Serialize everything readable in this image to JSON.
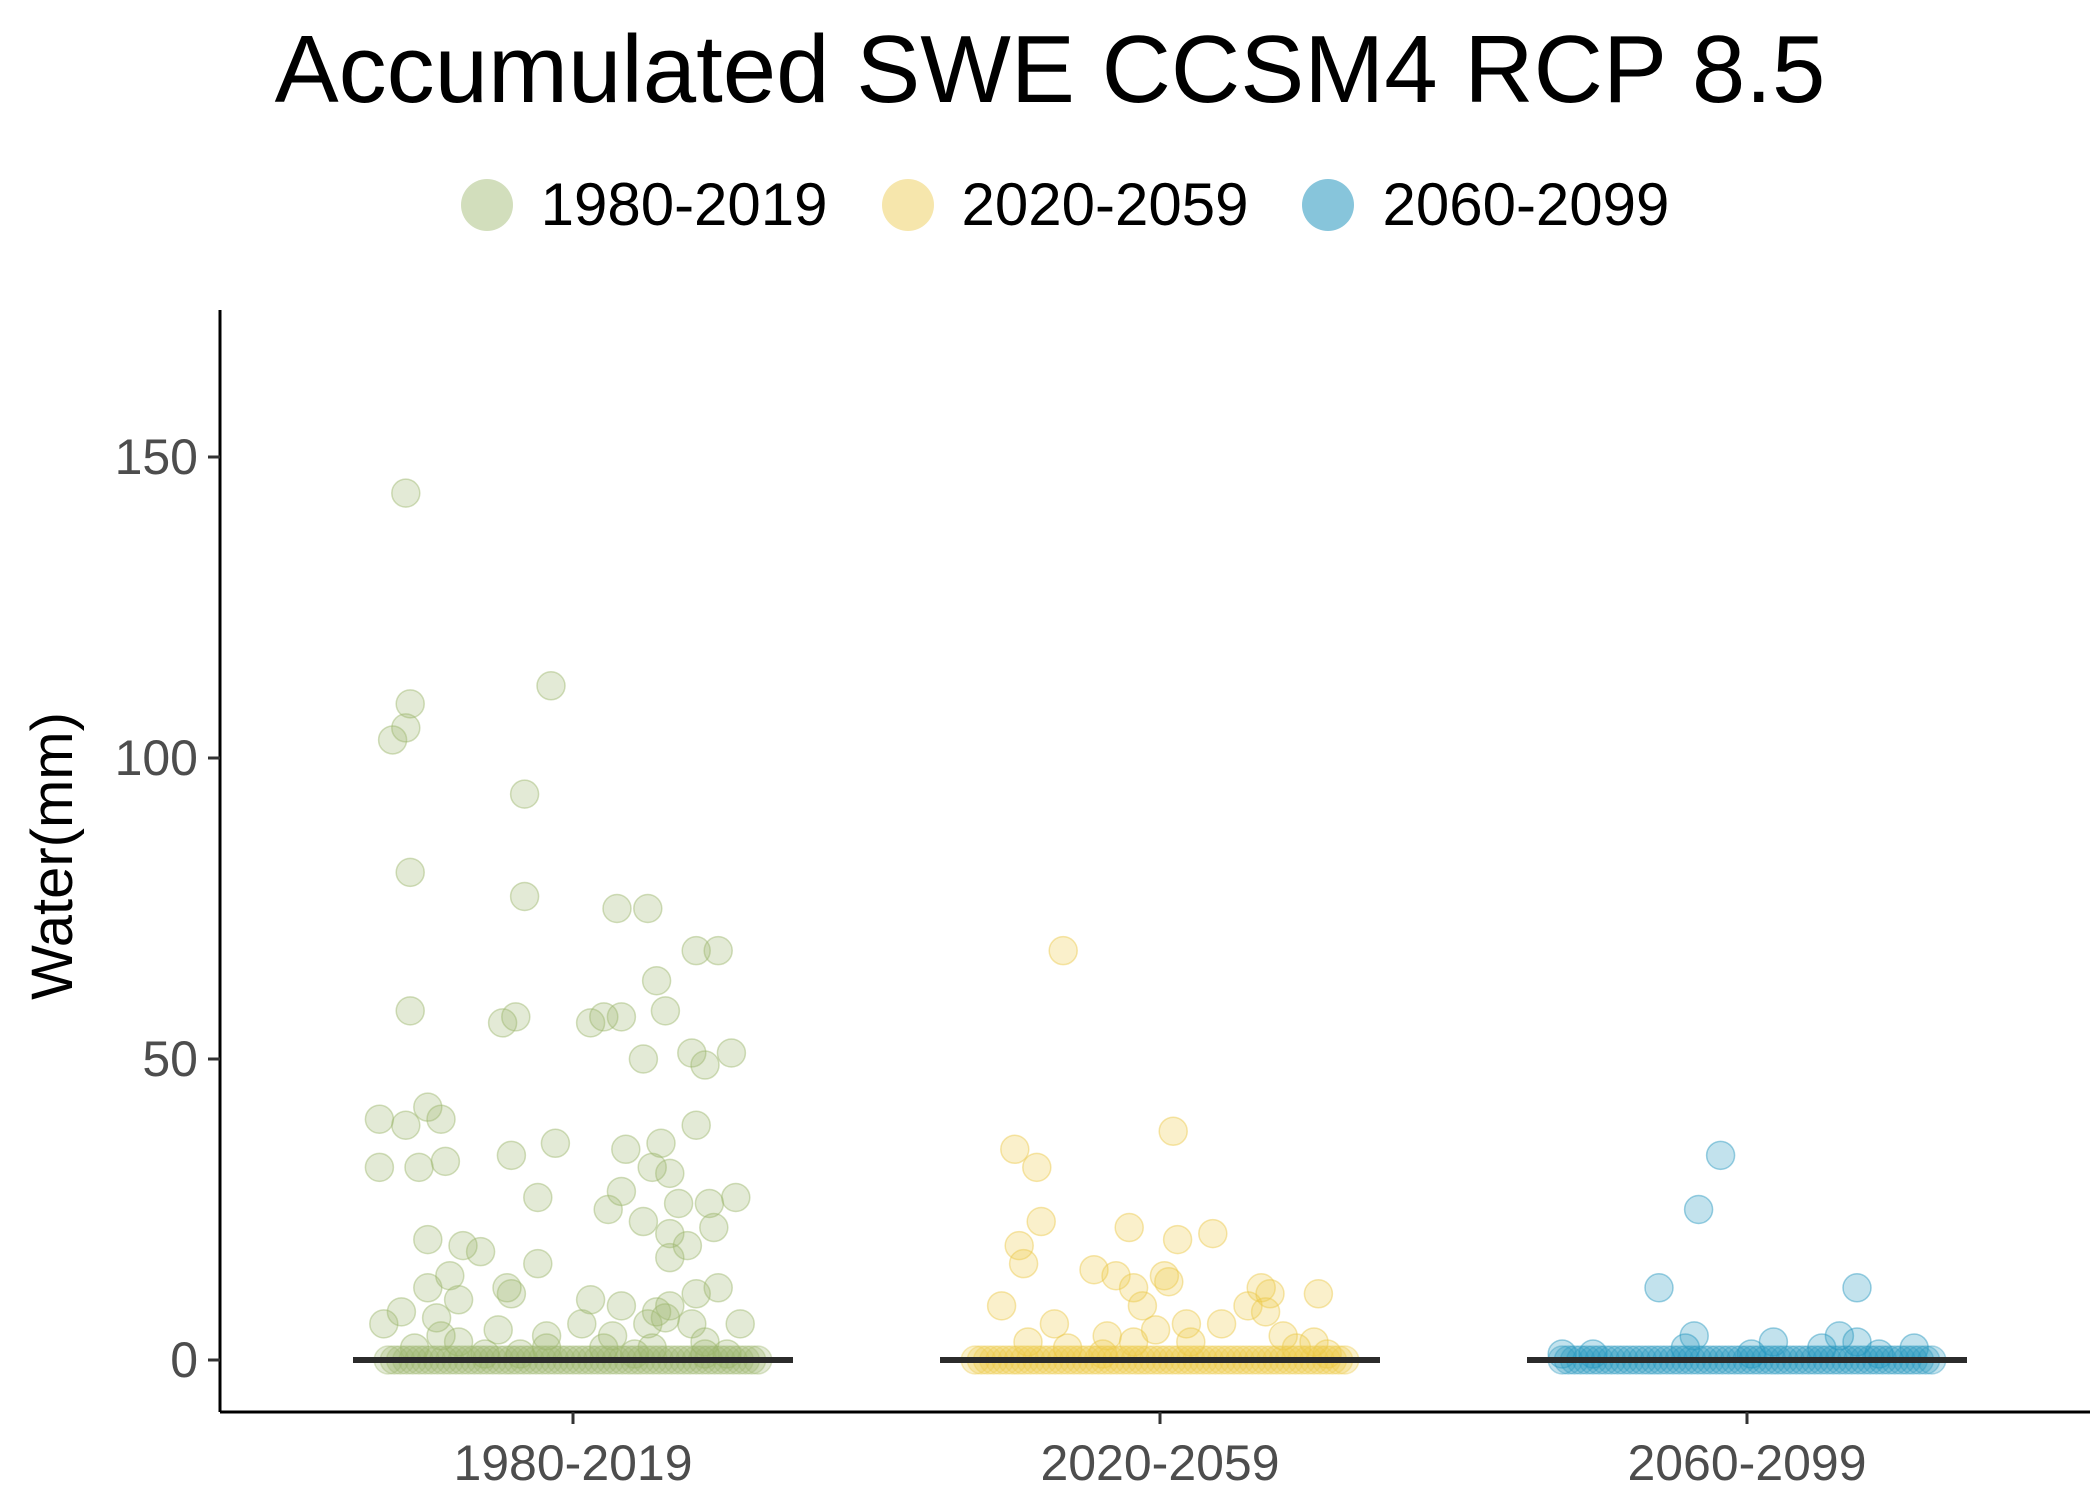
{
  "chart_data": {
    "type": "scatter",
    "title": "Accumulated SWE CCSM4 RCP 8.5",
    "xlabel": "",
    "ylabel": "Water(mm)",
    "ylim": [
      -8,
      174
    ],
    "yticks": [
      0,
      50,
      100,
      150
    ],
    "categories": [
      "1980-2019",
      "2020-2059",
      "2060-2099"
    ],
    "legend_position": "top",
    "median_line_color": "#2b2b2b",
    "series": [
      {
        "name": "1980-2019",
        "color": "#9bb56a",
        "median": 0,
        "points": [
          [
            -0.38,
            144
          ],
          [
            -0.37,
            109
          ],
          [
            -0.05,
            112
          ],
          [
            -0.38,
            105
          ],
          [
            -0.41,
            103
          ],
          [
            -0.11,
            94
          ],
          [
            -0.37,
            81
          ],
          [
            -0.11,
            77
          ],
          [
            0.1,
            75
          ],
          [
            0.17,
            75
          ],
          [
            0.28,
            68
          ],
          [
            0.33,
            68
          ],
          [
            0.19,
            63
          ],
          [
            -0.37,
            58
          ],
          [
            0.07,
            57
          ],
          [
            0.11,
            57
          ],
          [
            0.21,
            58
          ],
          [
            -0.16,
            56
          ],
          [
            -0.13,
            57
          ],
          [
            0.04,
            56
          ],
          [
            0.27,
            51
          ],
          [
            0.3,
            49
          ],
          [
            0.36,
            51
          ],
          [
            0.16,
            50
          ],
          [
            -0.33,
            42
          ],
          [
            -0.3,
            40
          ],
          [
            -0.44,
            40
          ],
          [
            -0.38,
            39
          ],
          [
            0.12,
            35
          ],
          [
            0.2,
            36
          ],
          [
            0.28,
            39
          ],
          [
            -0.04,
            36
          ],
          [
            -0.29,
            33
          ],
          [
            -0.14,
            34
          ],
          [
            -0.35,
            32
          ],
          [
            -0.44,
            32
          ],
          [
            0.18,
            32
          ],
          [
            0.22,
            31
          ],
          [
            -0.08,
            27
          ],
          [
            0.11,
            28
          ],
          [
            0.08,
            25
          ],
          [
            0.31,
            26
          ],
          [
            0.24,
            26
          ],
          [
            0.37,
            27
          ],
          [
            0.16,
            23
          ],
          [
            0.22,
            21
          ],
          [
            0.32,
            22
          ],
          [
            -0.33,
            20
          ],
          [
            -0.25,
            19
          ],
          [
            -0.21,
            18
          ],
          [
            0.26,
            19
          ],
          [
            0.22,
            17
          ],
          [
            -0.08,
            16
          ],
          [
            -0.28,
            14
          ],
          [
            -0.33,
            12
          ],
          [
            -0.15,
            12
          ],
          [
            -0.14,
            11
          ],
          [
            0.33,
            12
          ],
          [
            0.28,
            11
          ],
          [
            0.04,
            10
          ],
          [
            -0.26,
            10
          ],
          [
            0.11,
            9
          ],
          [
            0.22,
            9
          ],
          [
            0.19,
            8
          ],
          [
            -0.39,
            8
          ],
          [
            -0.31,
            7
          ],
          [
            0.21,
            7
          ],
          [
            0.27,
            6
          ],
          [
            -0.43,
            6
          ],
          [
            -0.17,
            5
          ],
          [
            0.02,
            6
          ],
          [
            0.17,
            6
          ],
          [
            0.38,
            6
          ],
          [
            -0.3,
            4
          ],
          [
            0.09,
            4
          ],
          [
            -0.06,
            4
          ],
          [
            -0.26,
            3
          ],
          [
            0.3,
            3
          ],
          [
            -0.36,
            2
          ],
          [
            -0.06,
            2
          ],
          [
            0.07,
            2
          ],
          [
            0.18,
            2
          ],
          [
            -0.2,
            1
          ],
          [
            -0.12,
            1
          ],
          [
            0.14,
            1
          ],
          [
            0.3,
            1
          ],
          [
            0.35,
            1
          ]
        ]
      },
      {
        "name": "2020-2059",
        "color": "#ecc846",
        "median": 0,
        "points": [
          [
            -0.22,
            68
          ],
          [
            0.03,
            38
          ],
          [
            -0.33,
            35
          ],
          [
            -0.28,
            32
          ],
          [
            -0.27,
            23
          ],
          [
            -0.07,
            22
          ],
          [
            0.12,
            21
          ],
          [
            0.04,
            20
          ],
          [
            -0.32,
            19
          ],
          [
            -0.31,
            16
          ],
          [
            -0.15,
            15
          ],
          [
            -0.1,
            14
          ],
          [
            -0.06,
            12
          ],
          [
            0.01,
            14
          ],
          [
            0.02,
            13
          ],
          [
            0.23,
            12
          ],
          [
            0.25,
            11
          ],
          [
            0.36,
            11
          ],
          [
            0.2,
            9
          ],
          [
            -0.04,
            9
          ],
          [
            -0.36,
            9
          ],
          [
            0.24,
            8
          ],
          [
            0.06,
            6
          ],
          [
            -0.24,
            6
          ],
          [
            0.14,
            6
          ],
          [
            0.28,
            4
          ],
          [
            0.35,
            3
          ],
          [
            -0.3,
            3
          ],
          [
            -0.12,
            4
          ],
          [
            -0.01,
            5
          ],
          [
            -0.06,
            3
          ],
          [
            0.07,
            3
          ],
          [
            -0.21,
            2
          ],
          [
            0.31,
            2
          ],
          [
            0.38,
            1
          ],
          [
            -0.13,
            1
          ]
        ]
      },
      {
        "name": "2060-2099",
        "color": "#2596be",
        "median": 0,
        "points": [
          [
            -0.06,
            34
          ],
          [
            -0.11,
            25
          ],
          [
            0.25,
            12
          ],
          [
            -0.2,
            12
          ],
          [
            0.21,
            4
          ],
          [
            -0.12,
            4
          ],
          [
            0.25,
            3
          ],
          [
            0.06,
            3
          ],
          [
            -0.14,
            2
          ],
          [
            0.17,
            2
          ],
          [
            0.38,
            2
          ],
          [
            -0.42,
            1
          ],
          [
            -0.35,
            1
          ],
          [
            0.3,
            1
          ],
          [
            0.01,
            1
          ]
        ]
      }
    ]
  }
}
